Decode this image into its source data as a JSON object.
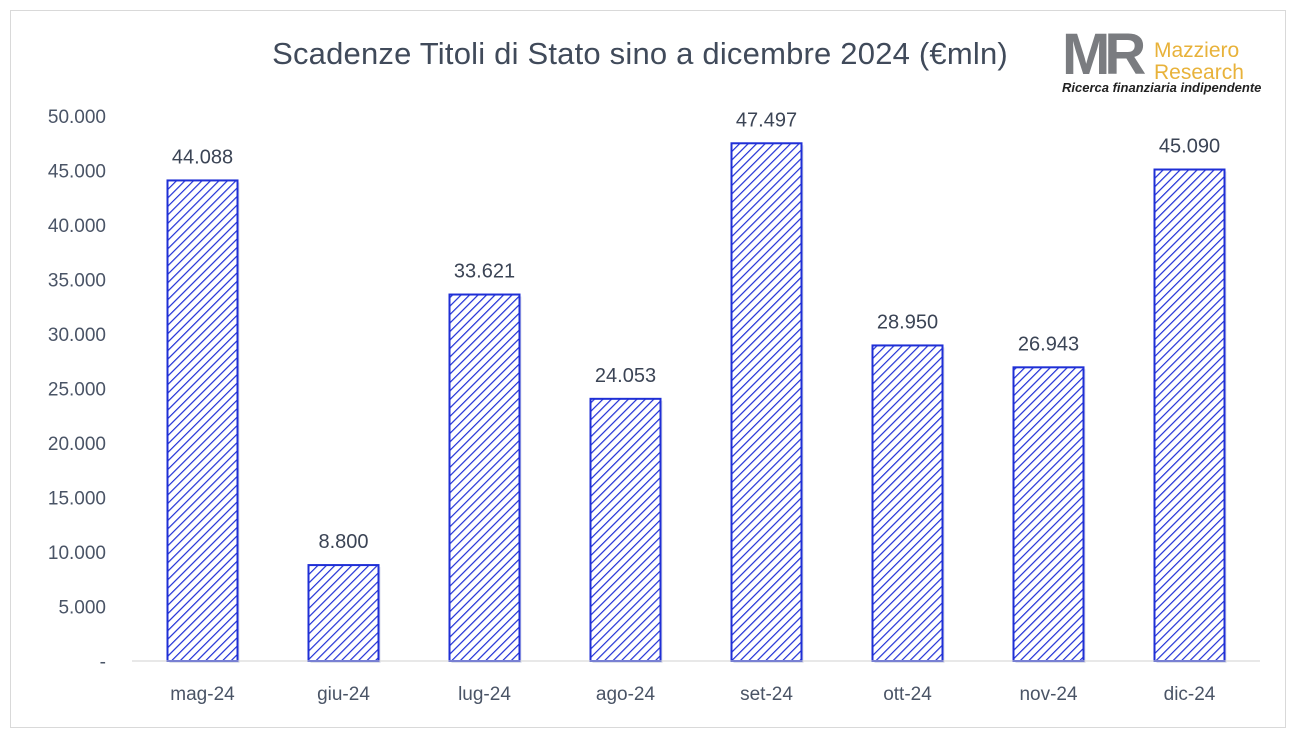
{
  "chart_data": {
    "type": "bar",
    "title": "Scadenze Titoli di Stato sino a dicembre 2024 (€mln)",
    "categories": [
      "mag-24",
      "giu-24",
      "lug-24",
      "ago-24",
      "set-24",
      "ott-24",
      "nov-24",
      "dic-24"
    ],
    "values": [
      44088,
      8800,
      33621,
      24053,
      47497,
      28950,
      26943,
      45090
    ],
    "data_labels": [
      "44.088",
      "8.800",
      "33.621",
      "24.053",
      "47.497",
      "28.950",
      "26.943",
      "45.090"
    ],
    "ylim": [
      0,
      50000
    ],
    "y_ticks": [
      0,
      5000,
      10000,
      15000,
      20000,
      25000,
      30000,
      35000,
      40000,
      45000,
      50000
    ],
    "y_tick_labels": [
      "-",
      "5.000",
      "10.000",
      "15.000",
      "20.000",
      "25.000",
      "30.000",
      "35.000",
      "40.000",
      "45.000",
      "50.000"
    ],
    "grid": false,
    "bar_fill": "hatched",
    "bar_color": "#1f2fd6"
  },
  "logo": {
    "mark": "MR",
    "name_line1": "Mazziero",
    "name_line2": "Research",
    "tagline": "Ricerca finanziaria indipendente"
  }
}
